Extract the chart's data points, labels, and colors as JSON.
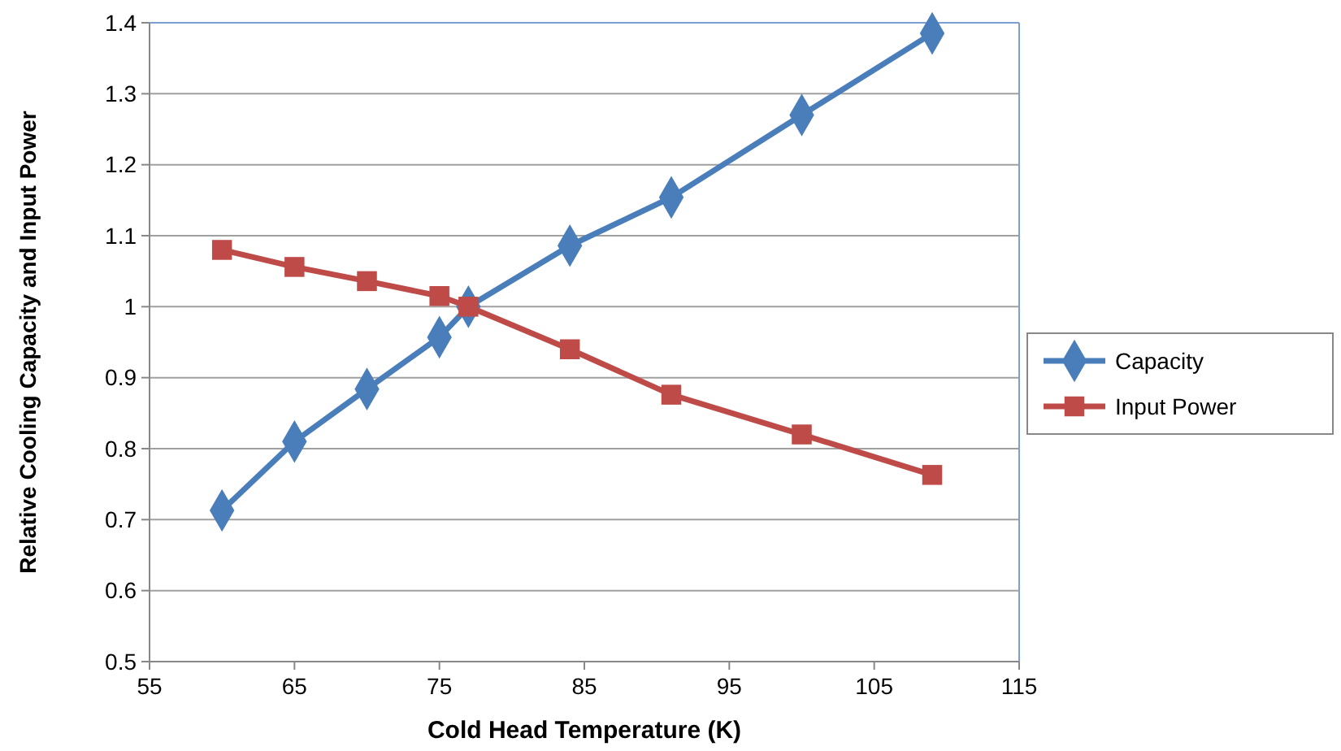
{
  "chart_data": {
    "type": "line",
    "xlabel": "Cold Head Temperature (K)",
    "ylabel": "Relative Cooling Capacity and Input Power",
    "x": [
      60,
      65,
      70,
      75,
      77,
      84,
      91,
      100,
      109
    ],
    "series": [
      {
        "name": "Capacity",
        "color": "#4a7ebb",
        "marker": "diamond",
        "values": [
          0.713,
          0.81,
          0.884,
          0.957,
          1.0,
          1.086,
          1.154,
          1.27,
          1.385
        ]
      },
      {
        "name": "Input Power",
        "color": "#be4b48",
        "marker": "square",
        "values": [
          1.08,
          1.056,
          1.036,
          1.015,
          1.0,
          0.94,
          0.876,
          0.82,
          0.763
        ]
      }
    ],
    "xlim": [
      55,
      115
    ],
    "xticks": [
      55,
      65,
      75,
      85,
      95,
      105,
      115
    ],
    "ylim": [
      0.5,
      1.4
    ],
    "yticks": [
      {
        "value": 0.5,
        "label": "0.5"
      },
      {
        "value": 0.6,
        "label": "0.6"
      },
      {
        "value": 0.7,
        "label": "0.7"
      },
      {
        "value": 0.8,
        "label": "0.8"
      },
      {
        "value": 0.9,
        "label": "0.9"
      },
      {
        "value": 1,
        "label": "1"
      },
      {
        "value": 1.1,
        "label": "1.1"
      },
      {
        "value": 1.2,
        "label": "1.2"
      },
      {
        "value": 1.3,
        "label": "1.3"
      },
      {
        "value": 1.4,
        "label": "1.4"
      }
    ],
    "grid": "y",
    "legend": "right",
    "line_style": "solid"
  }
}
